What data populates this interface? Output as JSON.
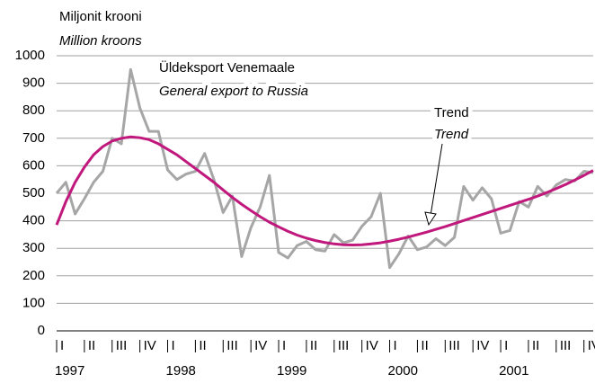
{
  "chart_data": {
    "type": "line",
    "y_label": [
      "Miljonit krooni",
      "Million kroons"
    ],
    "x": [
      0,
      1,
      2,
      3,
      4,
      5,
      6,
      7,
      8,
      9,
      10,
      11,
      12,
      13,
      14,
      15,
      16,
      17,
      18,
      19,
      20,
      21,
      22,
      23,
      24,
      25,
      26,
      27,
      28,
      29,
      30,
      31,
      32,
      33,
      34,
      35,
      36,
      37,
      38,
      39,
      40,
      41,
      42,
      43,
      44,
      45,
      46,
      47,
      48,
      49,
      50,
      51,
      52,
      53,
      54,
      55,
      56,
      57,
      58
    ],
    "series": [
      {
        "name": [
          "Üldeksport Venemaale",
          "General export to Russia"
        ],
        "color": "#a6a6a6",
        "values": [
          500,
          540,
          425,
          480,
          540,
          580,
          700,
          680,
          950,
          810,
          725,
          725,
          585,
          550,
          570,
          580,
          645,
          550,
          430,
          490,
          270,
          375,
          450,
          565,
          285,
          265,
          310,
          325,
          295,
          290,
          350,
          320,
          330,
          380,
          415,
          500,
          230,
          280,
          345,
          295,
          305,
          335,
          310,
          340,
          525,
          475,
          520,
          480,
          355,
          365,
          470,
          450,
          525,
          490,
          530,
          550,
          545,
          580,
          575
        ]
      },
      {
        "name": [
          "Trend",
          "Trend"
        ],
        "color": "#c0187c",
        "values": [
          385,
          470,
          540,
          595,
          640,
          670,
          690,
          700,
          705,
          702,
          695,
          680,
          660,
          640,
          615,
          590,
          565,
          540,
          512,
          485,
          460,
          437,
          415,
          395,
          378,
          362,
          348,
          337,
          328,
          321,
          316,
          313,
          312,
          313,
          316,
          320,
          326,
          333,
          341,
          350,
          359,
          369,
          379,
          390,
          401,
          412,
          423,
          434,
          445,
          456,
          467,
          478,
          490,
          503,
          517,
          532,
          548,
          565,
          583
        ]
      }
    ],
    "xlim": [
      0,
      58
    ],
    "xticks": [
      {
        "value": 0,
        "label": "I"
      },
      {
        "value": 3,
        "label": "II"
      },
      {
        "value": 6,
        "label": "III"
      },
      {
        "value": 9,
        "label": "IV"
      },
      {
        "value": 12,
        "label": "I"
      },
      {
        "value": 15,
        "label": "II"
      },
      {
        "value": 18,
        "label": "III"
      },
      {
        "value": 21,
        "label": "IV"
      },
      {
        "value": 24,
        "label": "I"
      },
      {
        "value": 27,
        "label": "II"
      },
      {
        "value": 30,
        "label": "III"
      },
      {
        "value": 33,
        "label": "IV"
      },
      {
        "value": 36,
        "label": "I"
      },
      {
        "value": 39,
        "label": "II"
      },
      {
        "value": 42,
        "label": "III"
      },
      {
        "value": 45,
        "label": "IV"
      },
      {
        "value": 48,
        "label": "I"
      },
      {
        "value": 51,
        "label": "II"
      },
      {
        "value": 54,
        "label": "III"
      },
      {
        "value": 57,
        "label": "IV"
      }
    ],
    "year_labels": [
      {
        "value": 0,
        "label": "1997"
      },
      {
        "value": 12,
        "label": "1998"
      },
      {
        "value": 24,
        "label": "1999"
      },
      {
        "value": 36,
        "label": "2000"
      },
      {
        "value": 48,
        "label": "2001"
      }
    ],
    "ylim": [
      0,
      1000
    ],
    "yticks": [
      0,
      100,
      200,
      300,
      400,
      500,
      600,
      700,
      800,
      900,
      1000
    ],
    "grid": true
  }
}
